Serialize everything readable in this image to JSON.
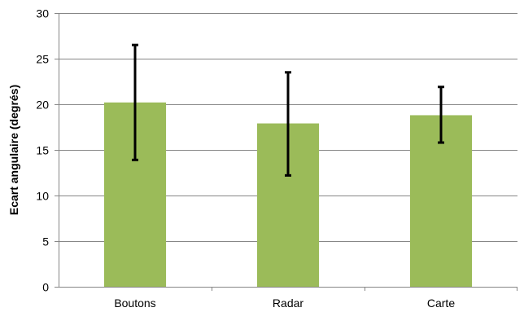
{
  "chart_data": {
    "type": "bar",
    "categories": [
      "Boutons",
      "Radar",
      "Carte"
    ],
    "values": [
      20.2,
      17.9,
      18.8
    ],
    "error_bars": [
      {
        "low": 13.9,
        "high": 26.5
      },
      {
        "low": 12.2,
        "high": 23.5
      },
      {
        "low": 15.8,
        "high": 21.9
      }
    ],
    "title": "",
    "xlabel": "",
    "ylabel": "Ecart angulaire (degrés)",
    "ylim": [
      0,
      30
    ],
    "yticks": [
      0,
      5,
      10,
      15,
      20,
      25,
      30
    ],
    "grid": true,
    "legend": "none",
    "colors": {
      "bar": "#9BBB59",
      "error_bar": "#000000",
      "grid": "#868686",
      "axis": "#868686"
    }
  }
}
